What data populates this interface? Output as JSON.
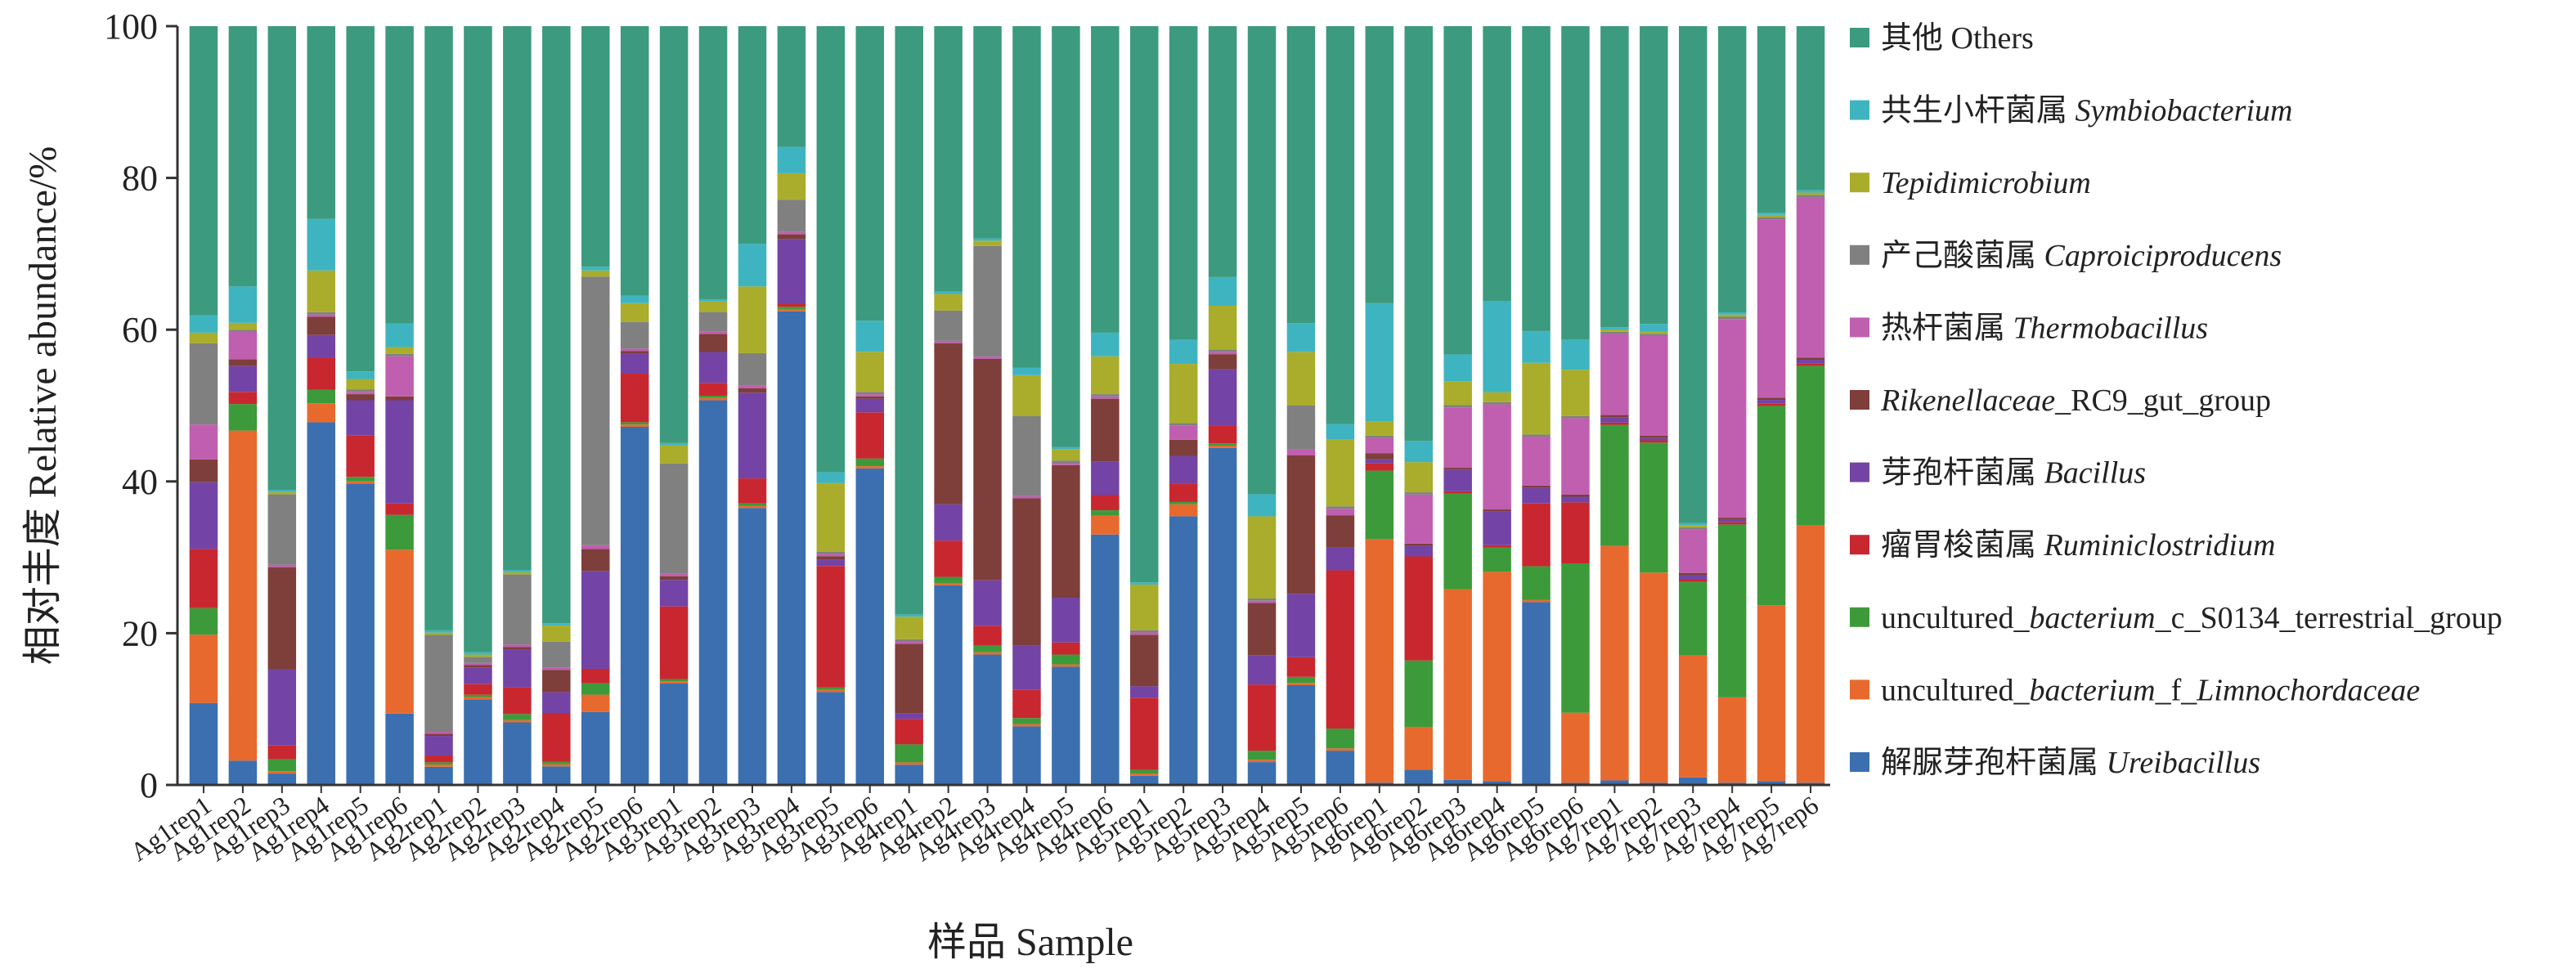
{
  "chart_data": {
    "type": "bar",
    "stacked": true,
    "title": "",
    "xlabel": "样品 Sample",
    "ylabel": "相对丰度 Relative abundance/%",
    "ylim": [
      0,
      100
    ],
    "yticks": [
      "0",
      "20",
      "40",
      "60",
      "80",
      "100"
    ],
    "grid": false,
    "legend_position": "right",
    "categories": [
      "Ag1rep1",
      "Ag1rep2",
      "Ag1rep3",
      "Ag1rep4",
      "Ag1rep5",
      "Ag1rep6",
      "Ag2rep1",
      "Ag2rep2",
      "Ag2rep3",
      "Ag2rep4",
      "Ag2rep5",
      "Ag2rep6",
      "Ag3rep1",
      "Ag3rep2",
      "Ag3rep3",
      "Ag3rep4",
      "Ag3rep5",
      "Ag3rep6",
      "Ag4rep1",
      "Ag4rep2",
      "Ag4rep3",
      "Ag4rep4",
      "Ag4rep5",
      "Ag4rep6",
      "Ag5rep1",
      "Ag5rep2",
      "Ag5rep3",
      "Ag5rep4",
      "Ag5rep5",
      "Ag5rep6",
      "Ag6rep1",
      "Ag6rep2",
      "Ag6rep3",
      "Ag6rep4",
      "Ag6rep5",
      "Ag6rep6",
      "Ag7rep1",
      "Ag7rep2",
      "Ag7rep3",
      "Ag7rep4",
      "Ag7rep5",
      "Ag7rep6"
    ],
    "series": [
      {
        "name": "解脲芽孢杆菌属 Ureibacillus",
        "color": "#3b6fb0",
        "values": [
          10.8,
          3.2,
          1.5,
          47.8,
          39.7,
          9.4,
          2.4,
          11.3,
          8.2,
          2.5,
          9.6,
          47.2,
          13.4,
          51.0,
          36.5,
          62.8,
          12.3,
          41.8,
          2.7,
          26.4,
          17.2,
          7.7,
          15.6,
          33.0,
          1.2,
          35.8,
          44.6,
          3.0,
          13.2,
          4.5,
          0.3,
          2.0,
          0.7,
          0.5,
          26.5,
          0.3,
          0.6,
          0.3,
          1.0,
          0.3,
          0.5,
          0.3
        ]
      },
      {
        "name": "uncultured_bacterium_f_Limnochordaceae",
        "color": "#e8692e",
        "values": [
          9.0,
          43.5,
          0.3,
          2.5,
          0.3,
          21.6,
          0.3,
          0.3,
          0.3,
          0.3,
          2.3,
          0.3,
          0.3,
          0.3,
          0.3,
          0.3,
          0.3,
          0.3,
          0.3,
          0.3,
          0.3,
          0.3,
          0.3,
          2.5,
          0.3,
          1.6,
          0.3,
          0.3,
          0.3,
          0.3,
          32.0,
          5.7,
          25.9,
          27.5,
          0.3,
          10.0,
          31.0,
          27.8,
          16.1,
          11.3,
          23.2,
          34.0
        ]
      },
      {
        "name": "uncultured_bacterium_c_S0134_terrestrial_group",
        "color": "#3d9a3a",
        "values": [
          3.5,
          3.5,
          1.6,
          1.8,
          0.6,
          4.6,
          0.3,
          0.3,
          0.8,
          0.3,
          1.5,
          0.3,
          0.3,
          0.3,
          0.3,
          0.3,
          0.3,
          1.0,
          2.4,
          0.8,
          0.9,
          0.8,
          1.3,
          0.7,
          0.5,
          0.3,
          0.3,
          1.2,
          0.8,
          2.6,
          9.0,
          8.8,
          13.0,
          3.2,
          4.9,
          21.3,
          16.0,
          17.2,
          9.7,
          22.9,
          26.3,
          21.1
        ]
      },
      {
        "name": "瘤胃梭菌属 Ruminiclostridium",
        "color": "#c9272f",
        "values": [
          7.8,
          1.6,
          1.8,
          4.2,
          5.5,
          1.5,
          0.9,
          1.4,
          3.5,
          6.6,
          1.9,
          6.4,
          9.6,
          1.7,
          3.3,
          0.4,
          16.1,
          6.1,
          3.4,
          4.8,
          2.6,
          3.7,
          1.6,
          2.0,
          9.5,
          2.4,
          2.3,
          8.7,
          2.6,
          20.8,
          1.0,
          13.8,
          0.3,
          0.3,
          9.1,
          8.7,
          0.3,
          0.3,
          0.3,
          0.3,
          0.3,
          0.3
        ]
      },
      {
        "name": "芽孢杆菌属 Bacillus",
        "color": "#7344a6",
        "values": [
          8.8,
          3.4,
          10.0,
          3.0,
          4.6,
          13.6,
          2.6,
          2.2,
          5.0,
          2.8,
          12.9,
          2.6,
          3.5,
          4.1,
          11.3,
          8.6,
          0.8,
          1.8,
          0.7,
          4.8,
          6.0,
          5.8,
          5.9,
          4.4,
          1.5,
          3.7,
          7.5,
          3.8,
          8.4,
          3.0,
          0.5,
          1.4,
          2.9,
          4.4,
          2.3,
          0.8,
          0.7,
          0.3,
          0.6,
          0.3,
          0.5,
          0.5
        ]
      },
      {
        "name": "Rikenellaceae_RC9_gut_group",
        "color": "#7e3e3a",
        "values": [
          3.0,
          0.9,
          13.5,
          2.4,
          0.8,
          0.5,
          0.3,
          0.3,
          0.3,
          3.0,
          2.9,
          0.4,
          0.5,
          2.4,
          0.6,
          0.6,
          0.5,
          0.3,
          9.3,
          21.3,
          29.2,
          19.4,
          17.5,
          8.3,
          6.8,
          2.2,
          2.0,
          6.9,
          18.3,
          4.2,
          0.8,
          0.3,
          0.3,
          0.3,
          0.3,
          0.3,
          0.3,
          0.3,
          0.3,
          0.3,
          0.3,
          0.3
        ]
      },
      {
        "name": "热杆菌属 Thermobacillus",
        "color": "#c05fb0",
        "values": [
          4.6,
          3.6,
          0.3,
          0.3,
          0.3,
          5.3,
          0.3,
          0.3,
          0.3,
          0.3,
          0.5,
          0.3,
          0.3,
          0.3,
          0.3,
          0.3,
          0.3,
          0.3,
          0.3,
          0.3,
          0.3,
          0.3,
          0.3,
          0.3,
          0.3,
          1.9,
          0.3,
          0.3,
          0.8,
          0.9,
          2.0,
          6.5,
          8.2,
          13.8,
          7.1,
          10.9,
          10.7,
          13.2,
          5.7,
          26.3,
          23.5,
          21.2
        ]
      },
      {
        "name": "产己酸菌属 Caproiciproducens",
        "color": "#808080",
        "values": [
          10.7,
          0.3,
          9.3,
          0.3,
          0.3,
          0.3,
          12.8,
          0.8,
          9.2,
          3.5,
          35.4,
          3.5,
          14.6,
          2.6,
          4.3,
          4.3,
          0.3,
          0.3,
          0.3,
          4.0,
          14.6,
          10.5,
          0.3,
          0.3,
          0.3,
          0.3,
          0.3,
          0.3,
          5.8,
          0.3,
          0.3,
          0.3,
          0.3,
          0.3,
          0.3,
          0.3,
          0.3,
          0.3,
          0.3,
          0.3,
          0.3,
          0.3
        ]
      },
      {
        "name": "Tepidimicrobium",
        "color": "#a9ad2b",
        "values": [
          1.4,
          0.9,
          0.3,
          5.5,
          1.4,
          0.9,
          0.3,
          0.3,
          0.3,
          2.2,
          0.8,
          2.5,
          2.4,
          1.4,
          8.8,
          3.5,
          9.1,
          5.3,
          3.0,
          2.2,
          0.7,
          5.4,
          1.5,
          5.0,
          6.0,
          7.9,
          5.8,
          10.8,
          7.1,
          8.8,
          1.9,
          4.0,
          3.2,
          1.3,
          10.4,
          6.6,
          0.3,
          0.3,
          0.3,
          0.3,
          0.3,
          0.3
        ]
      },
      {
        "name": "共生小杆菌属 Symbiobacterium",
        "color": "#3fb4c1",
        "values": [
          2.3,
          4.8,
          0.3,
          6.8,
          1.0,
          3.1,
          0.3,
          0.3,
          0.3,
          0.3,
          0.5,
          1.0,
          0.3,
          0.3,
          5.6,
          3.5,
          1.4,
          4.1,
          0.3,
          0.3,
          0.3,
          1.0,
          0.3,
          3.1,
          0.3,
          3.2,
          3.8,
          2.9,
          3.8,
          2.0,
          15.5,
          2.8,
          3.7,
          12.0,
          4.6,
          4.3,
          0.3,
          1.0,
          0.3,
          0.3,
          0.3,
          0.3
        ]
      },
      {
        "name": "其他 Others",
        "color": "#3c9a7e",
        "values": [
          38.1,
          34.3,
          61.1,
          25.4,
          45.5,
          39.2,
          80.1,
          82.6,
          71.3,
          80.5,
          31.7,
          35.5,
          55.1,
          36.2,
          28.7,
          16.0,
          59.1,
          38.9,
          78.3,
          35.1,
          28.0,
          44.9,
          55.5,
          40.4,
          73.3,
          41.8,
          33.2,
          61.5,
          39.3,
          52.3,
          36.4,
          55.0,
          44.6,
          36.1,
          44.2,
          44.7,
          39.8,
          39.4,
          65.6,
          37.9,
          24.6,
          21.7
        ]
      }
    ]
  }
}
